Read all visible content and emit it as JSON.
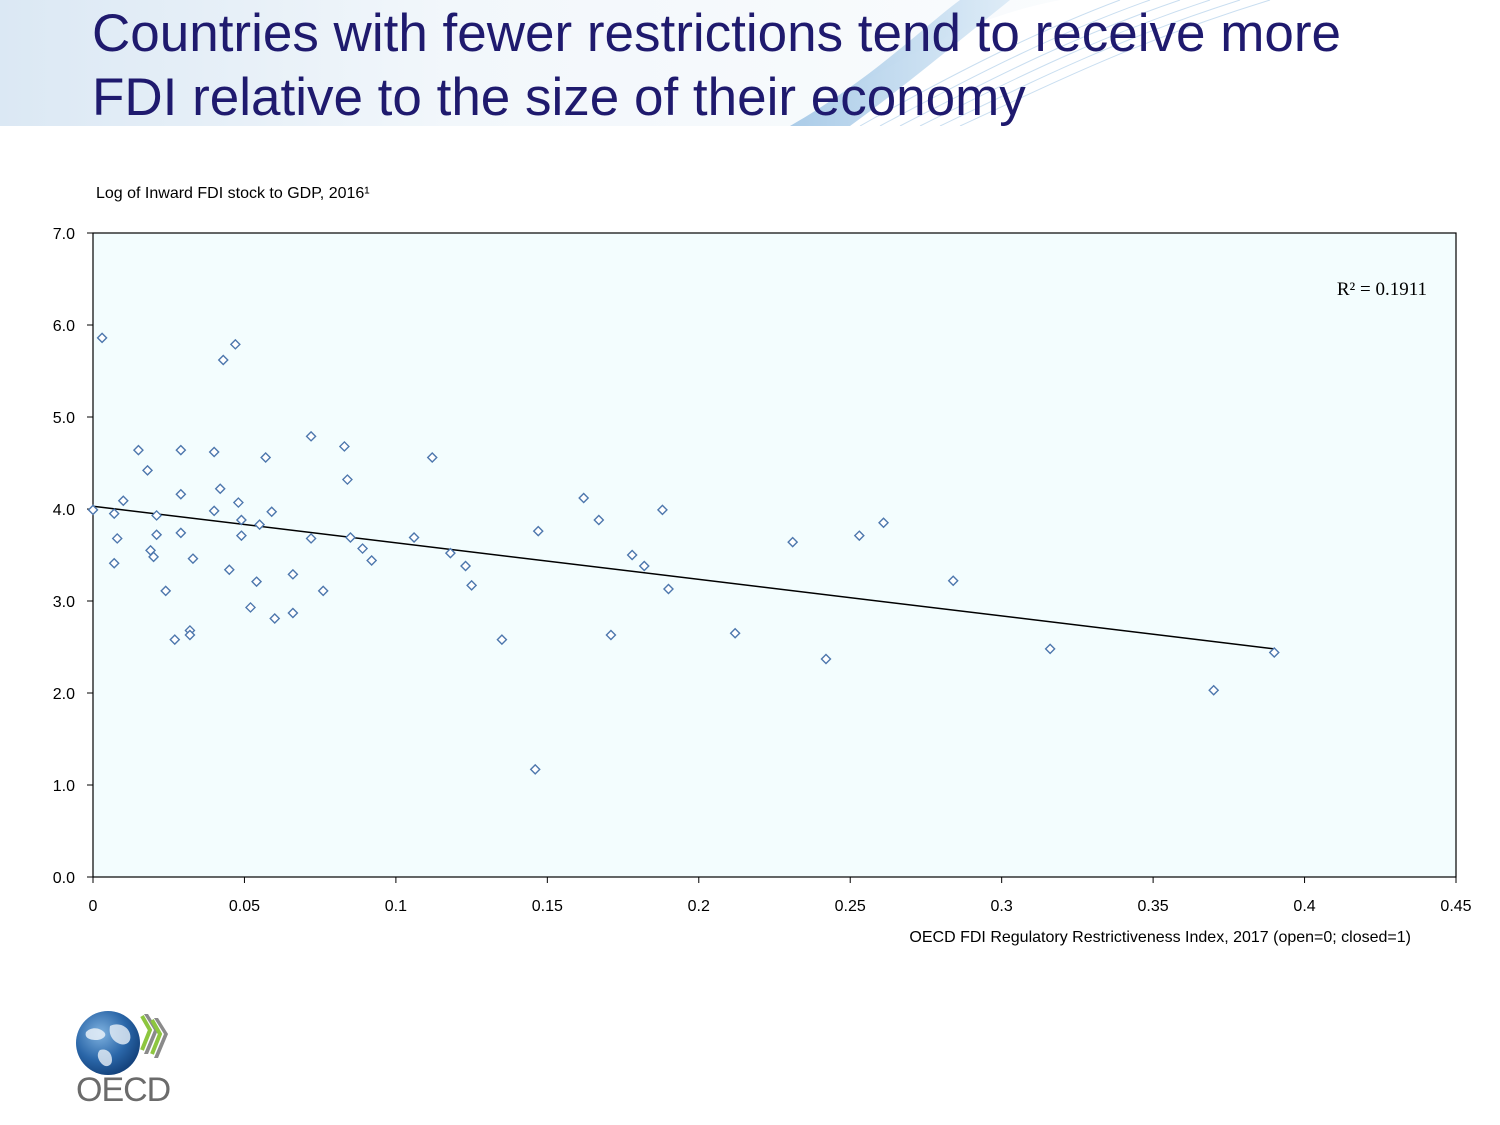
{
  "title": {
    "line1": "Countries with fewer restrictions tend to receive more",
    "line2": "FDI relative to the size of their economy"
  },
  "logo": {
    "text": "OECD",
    "icon": "oecd-globe-icon"
  },
  "colors": {
    "title": "#1f1a6e",
    "plot_bg": "#f3fdfe",
    "marker": "#4d77ad",
    "trend": "#000000",
    "banner_light": "#e8f1f9",
    "banner_dark": "#a9cbe7"
  },
  "chart_data": {
    "type": "scatter",
    "title": "",
    "ylabel": "Log of Inward FDI stock to GDP, 2016¹",
    "xlabel": "OECD FDI Regulatory Restrictiveness Index, 2017 (open=0; closed=1)",
    "xlim": [
      0,
      0.45
    ],
    "ylim": [
      0,
      7
    ],
    "x_ticks": [
      "0",
      "0.05",
      "0.1",
      "0.15",
      "0.2",
      "0.25",
      "0.3",
      "0.35",
      "0.4",
      "0.45"
    ],
    "x_tick_values": [
      0,
      0.05,
      0.1,
      0.15,
      0.2,
      0.25,
      0.3,
      0.35,
      0.4,
      0.45
    ],
    "y_ticks": [
      "0.0",
      "1.0",
      "2.0",
      "3.0",
      "4.0",
      "5.0",
      "6.0",
      "7.0"
    ],
    "y_tick_values": [
      0,
      1,
      2,
      3,
      4,
      5,
      6,
      7
    ],
    "r_squared_label": "R² = 0.1911",
    "trendline": {
      "x": [
        0,
        0.39
      ],
      "y": [
        4.03,
        2.48
      ]
    },
    "points": [
      [
        0.003,
        5.86
      ],
      [
        0.047,
        5.79
      ],
      [
        0.043,
        5.62
      ],
      [
        0.072,
        4.79
      ],
      [
        0.083,
        4.68
      ],
      [
        0.015,
        4.64
      ],
      [
        0.029,
        4.64
      ],
      [
        0.04,
        4.62
      ],
      [
        0.057,
        4.56
      ],
      [
        0.112,
        4.56
      ],
      [
        0.018,
        4.42
      ],
      [
        0.084,
        4.32
      ],
      [
        0.042,
        4.22
      ],
      [
        0.029,
        4.16
      ],
      [
        0.162,
        4.12
      ],
      [
        0.01,
        4.09
      ],
      [
        0.048,
        4.07
      ],
      [
        0.0,
        3.99
      ],
      [
        0.188,
        3.99
      ],
      [
        0.04,
        3.98
      ],
      [
        0.059,
        3.97
      ],
      [
        0.007,
        3.95
      ],
      [
        0.021,
        3.93
      ],
      [
        0.049,
        3.88
      ],
      [
        0.167,
        3.88
      ],
      [
        0.261,
        3.85
      ],
      [
        0.055,
        3.83
      ],
      [
        0.147,
        3.76
      ],
      [
        0.029,
        3.74
      ],
      [
        0.021,
        3.72
      ],
      [
        0.049,
        3.71
      ],
      [
        0.253,
        3.71
      ],
      [
        0.085,
        3.69
      ],
      [
        0.106,
        3.69
      ],
      [
        0.008,
        3.68
      ],
      [
        0.072,
        3.68
      ],
      [
        0.231,
        3.64
      ],
      [
        0.089,
        3.57
      ],
      [
        0.019,
        3.55
      ],
      [
        0.118,
        3.52
      ],
      [
        0.178,
        3.5
      ],
      [
        0.02,
        3.48
      ],
      [
        0.033,
        3.46
      ],
      [
        0.092,
        3.44
      ],
      [
        0.007,
        3.41
      ],
      [
        0.123,
        3.38
      ],
      [
        0.182,
        3.38
      ],
      [
        0.045,
        3.34
      ],
      [
        0.066,
        3.29
      ],
      [
        0.284,
        3.22
      ],
      [
        0.054,
        3.21
      ],
      [
        0.125,
        3.17
      ],
      [
        0.19,
        3.13
      ],
      [
        0.024,
        3.11
      ],
      [
        0.076,
        3.11
      ],
      [
        0.052,
        2.93
      ],
      [
        0.066,
        2.87
      ],
      [
        0.06,
        2.81
      ],
      [
        0.032,
        2.68
      ],
      [
        0.212,
        2.65
      ],
      [
        0.032,
        2.63
      ],
      [
        0.171,
        2.63
      ],
      [
        0.027,
        2.58
      ],
      [
        0.135,
        2.58
      ],
      [
        0.316,
        2.48
      ],
      [
        0.39,
        2.44
      ],
      [
        0.242,
        2.37
      ],
      [
        0.37,
        2.03
      ],
      [
        0.146,
        1.17
      ]
    ]
  }
}
